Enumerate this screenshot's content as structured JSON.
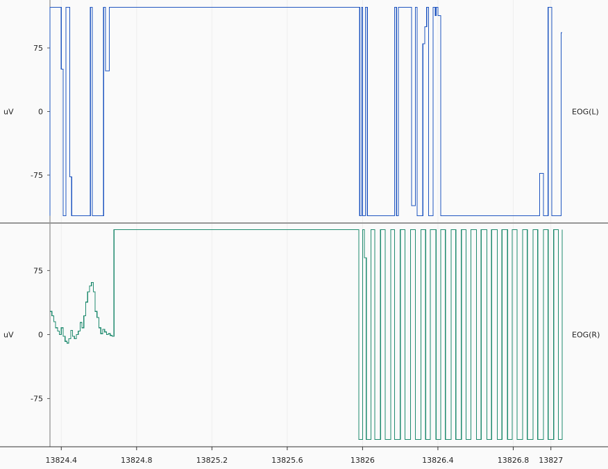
{
  "chart_data": [
    {
      "type": "line",
      "series": [
        {
          "name": "EOG(L)",
          "color": "#1f55c0",
          "points": [
            [
              13824.34,
              -123
            ],
            [
              13824.34,
              123
            ],
            [
              13824.4,
              123
            ],
            [
              13824.4,
              50
            ],
            [
              13824.41,
              50
            ],
            [
              13824.41,
              -123
            ],
            [
              13824.425,
              -123
            ],
            [
              13824.425,
              123
            ],
            [
              13824.445,
              123
            ],
            [
              13824.445,
              -77
            ],
            [
              13824.455,
              -77
            ],
            [
              13824.455,
              -123
            ],
            [
              13824.555,
              -123
            ],
            [
              13824.555,
              123
            ],
            [
              13824.565,
              123
            ],
            [
              13824.565,
              -123
            ],
            [
              13824.625,
              -123
            ],
            [
              13824.625,
              123
            ],
            [
              13824.635,
              123
            ],
            [
              13824.635,
              48
            ],
            [
              13824.655,
              48
            ],
            [
              13824.655,
              123
            ],
            [
              13825.985,
              123
            ],
            [
              13825.985,
              -123
            ],
            [
              13825.995,
              -123
            ],
            [
              13825.995,
              123
            ],
            [
              13826.0,
              123
            ],
            [
              13826.0,
              -123
            ],
            [
              13826.015,
              -123
            ],
            [
              13826.015,
              123
            ],
            [
              13826.025,
              123
            ],
            [
              13826.025,
              -123
            ],
            [
              13826.17,
              -123
            ],
            [
              13826.17,
              123
            ],
            [
              13826.18,
              123
            ],
            [
              13826.18,
              -123
            ],
            [
              13826.19,
              -123
            ],
            [
              13826.19,
              123
            ],
            [
              13826.26,
              123
            ],
            [
              13826.26,
              -111
            ],
            [
              13826.28,
              -111
            ],
            [
              13826.28,
              123
            ],
            [
              13826.29,
              123
            ],
            [
              13826.29,
              -123
            ],
            [
              13826.32,
              -123
            ],
            [
              13826.32,
              80
            ],
            [
              13826.33,
              80
            ],
            [
              13826.33,
              100
            ],
            [
              13826.34,
              100
            ],
            [
              13826.34,
              123
            ],
            [
              13826.35,
              123
            ],
            [
              13826.35,
              -123
            ],
            [
              13826.375,
              -123
            ],
            [
              13826.375,
              123
            ],
            [
              13826.385,
              123
            ],
            [
              13826.385,
              113
            ],
            [
              13826.39,
              113
            ],
            [
              13826.39,
              123
            ],
            [
              13826.4,
              123
            ],
            [
              13826.4,
              113
            ],
            [
              13826.415,
              113
            ],
            [
              13826.415,
              -123
            ],
            [
              13826.94,
              -123
            ],
            [
              13826.94,
              -73
            ],
            [
              13826.96,
              -73
            ],
            [
              13826.96,
              -123
            ],
            [
              13826.985,
              -123
            ],
            [
              13826.985,
              123
            ],
            [
              13827.005,
              123
            ],
            [
              13827.005,
              -123
            ],
            [
              13827.055,
              -123
            ],
            [
              13827.055,
              93
            ],
            [
              13827.06,
              93
            ]
          ]
        }
      ],
      "ylabel": "uV",
      "right_label": "EOG(L)",
      "yticks": [
        75,
        0,
        -75
      ],
      "ylim": [
        -125,
        125
      ],
      "xlim": [
        13824.34,
        13827.06
      ],
      "grid": false
    },
    {
      "type": "line",
      "series": [
        {
          "name": "EOG(R)",
          "color": "#1f8a6e",
          "points": [
            [
              13824.34,
              27
            ],
            [
              13824.35,
              27
            ],
            [
              13824.35,
              22
            ],
            [
              13824.36,
              22
            ],
            [
              13824.36,
              15
            ],
            [
              13824.37,
              15
            ],
            [
              13824.37,
              8
            ],
            [
              13824.38,
              8
            ],
            [
              13824.38,
              4
            ],
            [
              13824.39,
              4
            ],
            [
              13824.39,
              0
            ],
            [
              13824.4,
              0
            ],
            [
              13824.4,
              8
            ],
            [
              13824.41,
              8
            ],
            [
              13824.41,
              -2
            ],
            [
              13824.42,
              -2
            ],
            [
              13824.42,
              -8
            ],
            [
              13824.43,
              -8
            ],
            [
              13824.43,
              -10
            ],
            [
              13824.44,
              -10
            ],
            [
              13824.44,
              -5
            ],
            [
              13824.45,
              -5
            ],
            [
              13824.45,
              5
            ],
            [
              13824.46,
              5
            ],
            [
              13824.46,
              -2
            ],
            [
              13824.47,
              -2
            ],
            [
              13824.47,
              -5
            ],
            [
              13824.48,
              -5
            ],
            [
              13824.48,
              0
            ],
            [
              13824.49,
              0
            ],
            [
              13824.49,
              4
            ],
            [
              13824.5,
              4
            ],
            [
              13824.5,
              14
            ],
            [
              13824.51,
              14
            ],
            [
              13824.51,
              8
            ],
            [
              13824.52,
              8
            ],
            [
              13824.52,
              22
            ],
            [
              13824.53,
              22
            ],
            [
              13824.53,
              38
            ],
            [
              13824.54,
              38
            ],
            [
              13824.54,
              50
            ],
            [
              13824.55,
              50
            ],
            [
              13824.55,
              57
            ],
            [
              13824.56,
              57
            ],
            [
              13824.56,
              61
            ],
            [
              13824.57,
              61
            ],
            [
              13824.57,
              50
            ],
            [
              13824.58,
              50
            ],
            [
              13824.58,
              27
            ],
            [
              13824.59,
              27
            ],
            [
              13824.59,
              20
            ],
            [
              13824.6,
              20
            ],
            [
              13824.6,
              8
            ],
            [
              13824.61,
              8
            ],
            [
              13824.61,
              1
            ],
            [
              13824.62,
              1
            ],
            [
              13824.62,
              6
            ],
            [
              13824.63,
              6
            ],
            [
              13824.63,
              3
            ],
            [
              13824.64,
              3
            ],
            [
              13824.64,
              0
            ],
            [
              13824.65,
              0
            ],
            [
              13824.65,
              1
            ],
            [
              13824.66,
              1
            ],
            [
              13824.66,
              -1
            ],
            [
              13824.67,
              -1
            ],
            [
              13824.67,
              -2
            ],
            [
              13824.68,
              -2
            ],
            [
              13824.68,
              123
            ],
            [
              13825.98,
              123
            ],
            [
              13825.98,
              -123
            ],
            [
              13826.0,
              -123
            ],
            [
              13826.0,
              123
            ],
            [
              13826.01,
              123
            ],
            [
              13826.01,
              90
            ],
            [
              13826.02,
              90
            ],
            [
              13826.02,
              -123
            ],
            [
              13826.045,
              -123
            ],
            [
              13826.045,
              123
            ],
            [
              13826.065,
              123
            ],
            [
              13826.065,
              -123
            ],
            [
              13826.095,
              -123
            ],
            [
              13826.095,
              123
            ],
            [
              13826.12,
              123
            ],
            [
              13826.12,
              -123
            ],
            [
              13826.15,
              -123
            ],
            [
              13826.15,
              123
            ],
            [
              13826.17,
              123
            ],
            [
              13826.17,
              -123
            ],
            [
              13826.2,
              -123
            ],
            [
              13826.2,
              123
            ],
            [
              13826.225,
              123
            ],
            [
              13826.225,
              -123
            ],
            [
              13826.255,
              -123
            ],
            [
              13826.255,
              123
            ],
            [
              13826.28,
              123
            ],
            [
              13826.28,
              -123
            ],
            [
              13826.31,
              -123
            ],
            [
              13826.31,
              123
            ],
            [
              13826.335,
              123
            ],
            [
              13826.335,
              -123
            ],
            [
              13826.36,
              -123
            ],
            [
              13826.36,
              123
            ],
            [
              13826.39,
              123
            ],
            [
              13826.39,
              -123
            ],
            [
              13826.415,
              -123
            ],
            [
              13826.415,
              123
            ],
            [
              13826.44,
              123
            ],
            [
              13826.44,
              -123
            ],
            [
              13826.47,
              -123
            ],
            [
              13826.47,
              123
            ],
            [
              13826.495,
              123
            ],
            [
              13826.495,
              -123
            ],
            [
              13826.525,
              -123
            ],
            [
              13826.525,
              123
            ],
            [
              13826.55,
              123
            ],
            [
              13826.55,
              -123
            ],
            [
              13826.575,
              -123
            ],
            [
              13826.575,
              123
            ],
            [
              13826.605,
              123
            ],
            [
              13826.605,
              -123
            ],
            [
              13826.63,
              -123
            ],
            [
              13826.63,
              123
            ],
            [
              13826.66,
              123
            ],
            [
              13826.66,
              -123
            ],
            [
              13826.685,
              -123
            ],
            [
              13826.685,
              123
            ],
            [
              13826.715,
              123
            ],
            [
              13826.715,
              -123
            ],
            [
              13826.74,
              -123
            ],
            [
              13826.74,
              123
            ],
            [
              13826.77,
              123
            ],
            [
              13826.77,
              -123
            ],
            [
              13826.795,
              -123
            ],
            [
              13826.795,
              123
            ],
            [
              13826.82,
              123
            ],
            [
              13826.82,
              -123
            ],
            [
              13826.85,
              -123
            ],
            [
              13826.85,
              123
            ],
            [
              13826.875,
              123
            ],
            [
              13826.875,
              -123
            ],
            [
              13826.905,
              -123
            ],
            [
              13826.905,
              123
            ],
            [
              13826.93,
              123
            ],
            [
              13826.93,
              -123
            ],
            [
              13826.96,
              -123
            ],
            [
              13826.96,
              123
            ],
            [
              13826.985,
              123
            ],
            [
              13826.985,
              -123
            ],
            [
              13827.015,
              -123
            ],
            [
              13827.015,
              123
            ],
            [
              13827.04,
              123
            ],
            [
              13827.04,
              -123
            ],
            [
              13827.06,
              -123
            ],
            [
              13827.06,
              123
            ]
          ]
        }
      ],
      "ylabel": "uV",
      "right_label": "EOG(R)",
      "yticks": [
        75,
        0,
        -75
      ],
      "ylim": [
        -125,
        125
      ],
      "xlim": [
        13824.34,
        13827.06
      ],
      "grid": false
    }
  ],
  "x_axis": {
    "ticks": [
      13824.4,
      13824.8,
      13825.2,
      13825.6,
      13826,
      13826.4,
      13826.8,
      13827
    ],
    "tick_labels": [
      "13824.4",
      "13824.8",
      "13825.2",
      "13825.6",
      "13826",
      "13826.4",
      "13826.8",
      "13827"
    ]
  }
}
